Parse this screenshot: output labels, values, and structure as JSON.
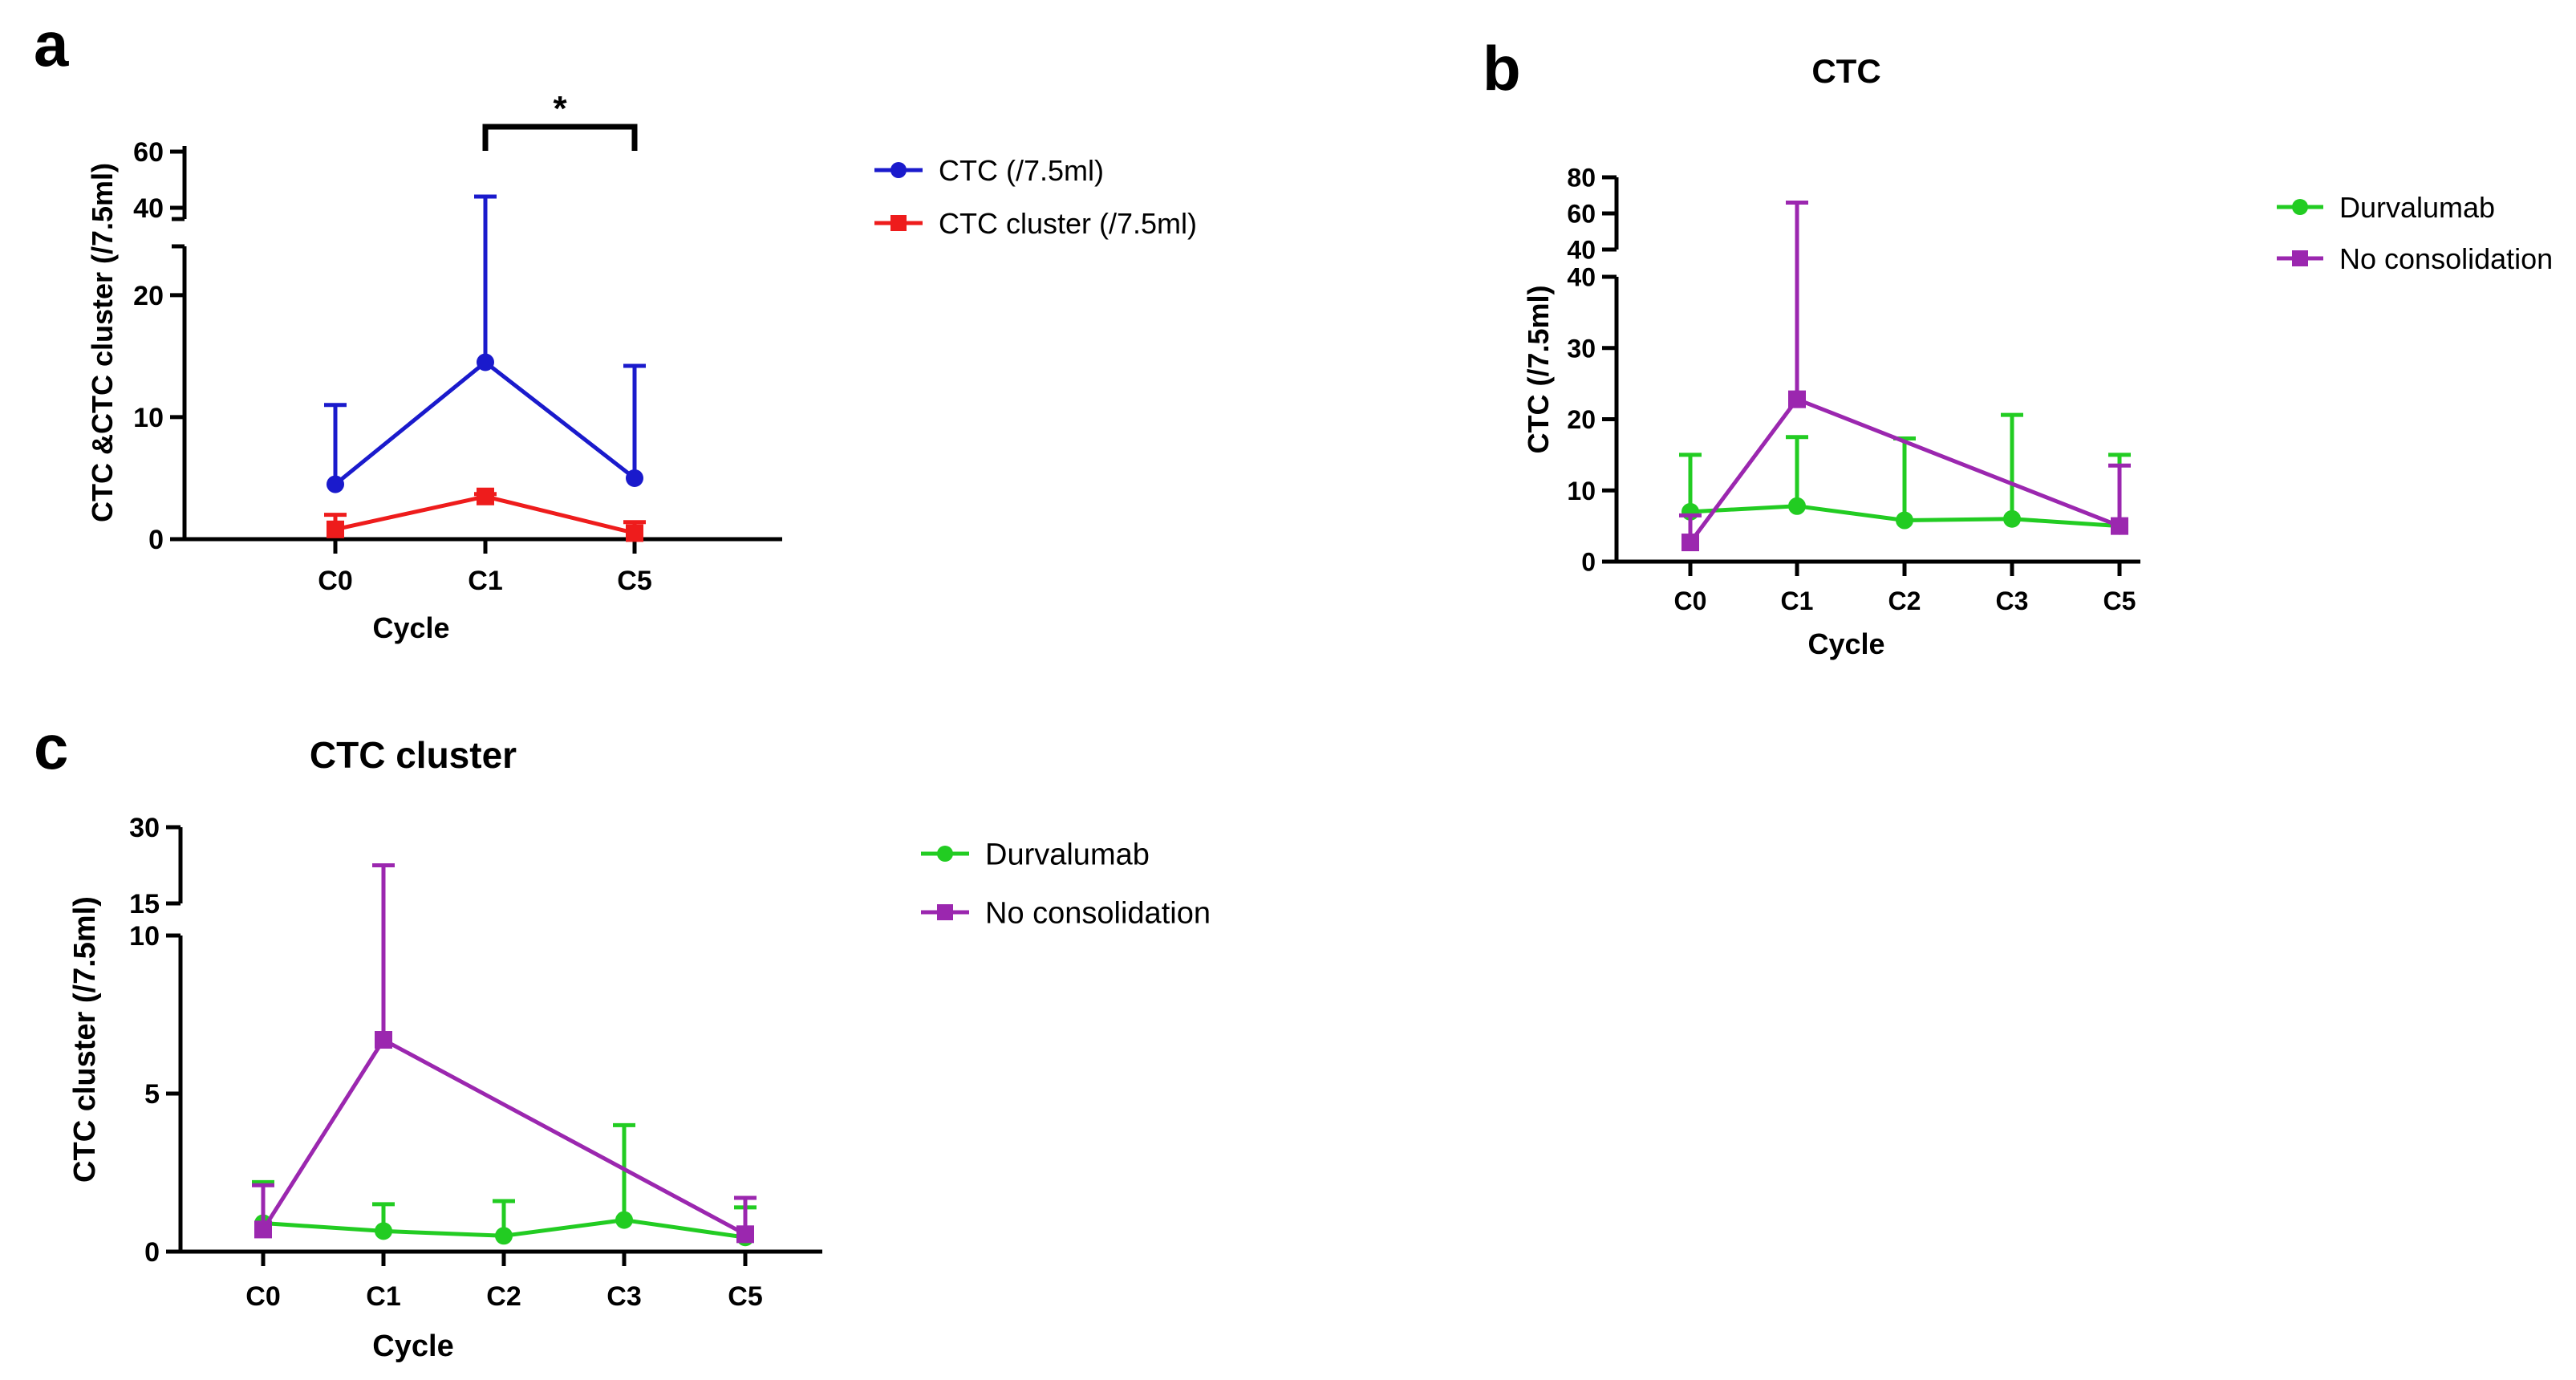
{
  "chart_data": [
    {
      "panel": "a",
      "type": "line",
      "title": "",
      "xlabel": "Cycle",
      "ylabel": "CTC &CTC cluster (/7.5ml)",
      "categories": [
        "C0",
        "C1",
        "C5"
      ],
      "y_ticks_lower": [
        "0",
        "10",
        "20"
      ],
      "y_ticks_upper": [
        "40",
        "60"
      ],
      "ylim_lower": [
        0,
        24
      ],
      "ylim_upper": [
        36,
        62
      ],
      "significance": "*",
      "series": [
        {
          "name": "CTC (/7.5ml)",
          "color": "#1a1acc",
          "marker": "circle",
          "values": [
            4.5,
            14.5,
            5.0
          ],
          "error_upper": [
            11.0,
            44.0,
            14.2
          ]
        },
        {
          "name": "CTC cluster (/7.5ml)",
          "color": "#ee1c1c",
          "marker": "square",
          "values": [
            0.8,
            3.5,
            0.5
          ],
          "error_upper": [
            2.0,
            3.7,
            1.4
          ]
        }
      ]
    },
    {
      "panel": "b",
      "type": "line",
      "title": "CTC",
      "xlabel": "Cycle",
      "ylabel": "CTC (/7.5ml)",
      "categories": [
        "C0",
        "C1",
        "C2",
        "C3",
        "C5"
      ],
      "y_ticks_lower": [
        "0",
        "10",
        "20",
        "30",
        "40"
      ],
      "y_ticks_upper": [
        "40",
        "60",
        "80"
      ],
      "ylim_lower": [
        0,
        40
      ],
      "ylim_upper": [
        40,
        80
      ],
      "series": [
        {
          "name": "Durvalumab",
          "color": "#22cc22",
          "marker": "circle",
          "values": [
            7.0,
            7.8,
            5.8,
            6.0,
            5.0
          ],
          "error_upper": [
            15.0,
            17.5,
            17.3,
            20.6,
            15.0
          ]
        },
        {
          "name": "No consolidation",
          "color": "#9b27af",
          "marker": "square",
          "values": [
            2.7,
            22.8,
            null,
            null,
            5.0
          ],
          "error_upper": [
            6.5,
            66.0,
            null,
            null,
            13.5
          ]
        }
      ]
    },
    {
      "panel": "c",
      "type": "line",
      "title": "CTC cluster",
      "xlabel": "Cycle",
      "ylabel": "CTC cluster (/7.5ml)",
      "categories": [
        "C0",
        "C1",
        "C2",
        "C3",
        "C5"
      ],
      "y_ticks_lower": [
        "0",
        "5",
        "10"
      ],
      "y_ticks_upper": [
        "15",
        "30"
      ],
      "ylim_lower": [
        0,
        10
      ],
      "ylim_upper": [
        15,
        30
      ],
      "series": [
        {
          "name": "Durvalumab",
          "color": "#22cc22",
          "marker": "circle",
          "values": [
            0.9,
            0.65,
            0.5,
            1.0,
            0.45
          ],
          "error_upper": [
            2.2,
            1.5,
            1.6,
            4.0,
            1.4
          ]
        },
        {
          "name": "No consolidation",
          "color": "#9b27af",
          "marker": "square",
          "values": [
            0.7,
            6.7,
            null,
            null,
            0.55
          ],
          "error_upper": [
            2.1,
            22.5,
            null,
            null,
            1.7
          ]
        }
      ]
    }
  ],
  "panel_labels": {
    "a": "a",
    "b": "b",
    "c": "c"
  }
}
